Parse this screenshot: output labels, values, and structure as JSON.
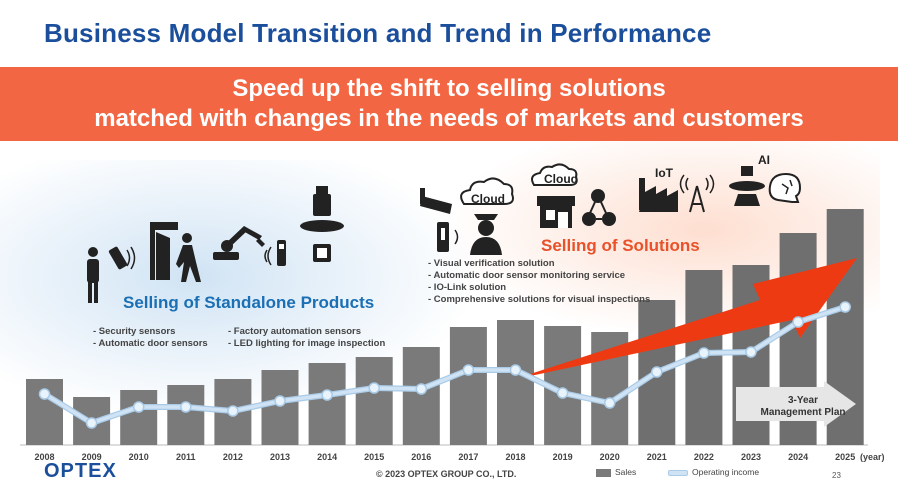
{
  "title": "Business Model Transition and Trend in Performance",
  "banner": {
    "line1": "Speed up the shift to selling solutions",
    "line2": "matched with changes in the needs of markets and customers"
  },
  "segments": {
    "standalone": {
      "label": "Selling of Standalone Products",
      "bullets_left": [
        "- Security sensors",
        "- Automatic door sensors"
      ],
      "bullets_right": [
        "- Factory automation sensors",
        "- LED lighting for image inspection"
      ]
    },
    "solutions": {
      "label": "Selling of Solutions",
      "bullets": [
        "- Visual verification solution",
        "- Automatic door sensor monitoring service",
        "- IO-Link solution",
        "- Comprehensive solutions for visual inspections"
      ]
    }
  },
  "icon_labels": {
    "cloud_1": "Cloud",
    "cloud_2": "Cloud",
    "iot": "IoT",
    "ai": "AI"
  },
  "icons": [
    "person-icon",
    "sensor-icon",
    "automatic-door-icon",
    "robot-arm-icon",
    "io-sensor-icon",
    "led-ring-light-icon",
    "camera-icon",
    "cloud-icon",
    "guard-icon",
    "store-icon",
    "network-icon",
    "factory-icon",
    "antenna-icon",
    "ai-brain-icon"
  ],
  "plan_label": {
    "line1": "3-Year",
    "line2": "Management Plan"
  },
  "footer": {
    "logo": "OPTEX",
    "copyright": "© 2023 OPTEX GROUP CO., LTD.",
    "page": "23",
    "year_suffix": "(year)"
  },
  "colors": {
    "title": "#1b4f9c",
    "banner": "#f26643",
    "bar_standalone": "#7a7a7a",
    "bar_solutions": "#6f6f6f",
    "line": "#cfe3f4",
    "trend_arrow": "#ee3a12",
    "standalone_label": "#1a6fb5",
    "solutions_label": "#e8512a"
  },
  "chart_data": {
    "type": "bar",
    "categories": [
      "2008",
      "2009",
      "2010",
      "2011",
      "2012",
      "2013",
      "2014",
      "2015",
      "2016",
      "2017",
      "2018",
      "2019",
      "2020",
      "2021",
      "2022",
      "2023",
      "2024",
      "2025"
    ],
    "series": [
      {
        "name": "Sales",
        "type": "bar",
        "values": [
          66,
          48,
          55,
          60,
          66,
          75,
          82,
          88,
          98,
          118,
          125,
          119,
          113,
          145,
          175,
          180,
          212,
          236
        ]
      },
      {
        "name": "Operating income",
        "type": "line",
        "values": [
          51,
          22,
          38,
          38,
          34,
          44,
          50,
          57,
          56,
          75,
          75,
          52,
          42,
          73,
          92,
          93,
          123,
          138
        ]
      }
    ],
    "xlabel": "(year)",
    "ylabel": "",
    "legend": "bottom",
    "grid": false,
    "annotation": "3-Year Management Plan"
  }
}
